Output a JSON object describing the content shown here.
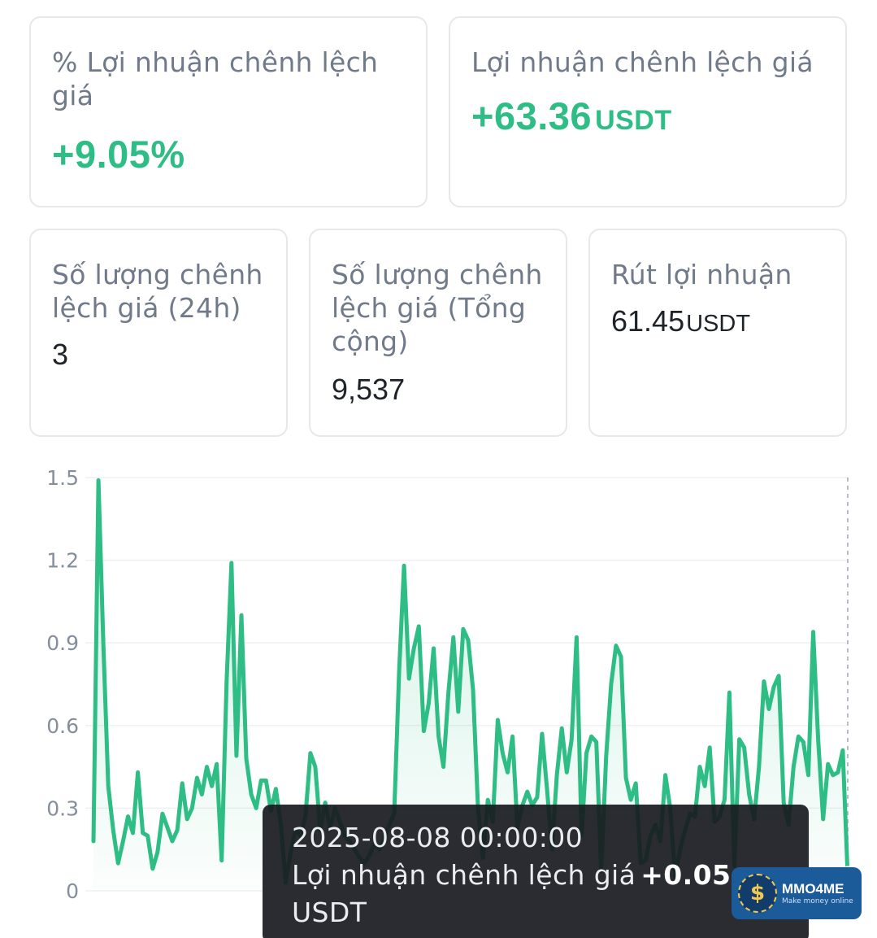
{
  "cards": {
    "arb_pct": {
      "label": "% Lợi nhuận chênh lệch giá",
      "value": "+9.05%"
    },
    "arb_profit": {
      "label": "Lợi nhuận chênh lệch giá",
      "value": "+63.36",
      "unit": "USDT"
    },
    "arb_count_24h": {
      "label": "Số lượng chênh lệch giá (24h)",
      "value": "3"
    },
    "arb_count_total": {
      "label": "Số lượng chênh lệch giá (Tổng cộng)",
      "value": "9,537"
    },
    "withdraw": {
      "label": "Rút lợi nhuận",
      "value": "61.45",
      "unit": "USDT"
    }
  },
  "tooltip": {
    "date": "2025-08-08 00:00:00",
    "label": "Lợi nhuận chênh lệch giá",
    "value": "+0.05",
    "unit": "USDT"
  },
  "watermark": {
    "brand": "MMO4ME",
    "tagline": "Make money online",
    "symbol": "$"
  },
  "colors": {
    "accent": "#2ebd85",
    "label": "#707a8a",
    "value": "#1e2329"
  },
  "chart_data": {
    "type": "area",
    "ylim": [
      0,
      1.5
    ],
    "yticks": [
      "0",
      "0.3",
      "0.6",
      "0.9",
      "1.2",
      "1.5"
    ],
    "grid": true,
    "values": [
      0.18,
      1.49,
      0.9,
      0.38,
      0.22,
      0.1,
      0.18,
      0.27,
      0.21,
      0.43,
      0.21,
      0.2,
      0.08,
      0.14,
      0.28,
      0.23,
      0.18,
      0.22,
      0.39,
      0.26,
      0.3,
      0.41,
      0.35,
      0.45,
      0.38,
      0.46,
      0.11,
      0.76,
      1.19,
      0.49,
      1.0,
      0.48,
      0.35,
      0.3,
      0.4,
      0.4,
      0.29,
      0.37,
      0.24,
      0.03,
      0.14,
      0.22,
      0.2,
      0.27,
      0.5,
      0.45,
      0.22,
      0.32,
      0.23,
      0.3,
      0.25,
      0.2,
      0.18,
      0.15,
      0.12,
      0.1,
      0.13,
      0.17,
      0.15,
      0.19,
      0.24,
      0.28,
      0.8,
      1.18,
      0.77,
      0.88,
      0.96,
      0.58,
      0.68,
      0.88,
      0.56,
      0.45,
      0.72,
      0.92,
      0.65,
      0.95,
      0.91,
      0.73,
      0.3,
      0.12,
      0.33,
      0.25,
      0.62,
      0.5,
      0.43,
      0.56,
      0.23,
      0.31,
      0.36,
      0.31,
      0.34,
      0.57,
      0.37,
      0.15,
      0.42,
      0.59,
      0.43,
      0.55,
      0.92,
      0.2,
      0.5,
      0.56,
      0.54,
      0.07,
      0.49,
      0.75,
      0.89,
      0.85,
      0.41,
      0.33,
      0.39,
      0.1,
      0.11,
      0.2,
      0.24,
      0.18,
      0.42,
      0.3,
      0.05,
      0.15,
      0.22,
      0.28,
      0.27,
      0.45,
      0.38,
      0.52,
      0.25,
      0.27,
      0.33,
      0.72,
      0.09,
      0.55,
      0.52,
      0.35,
      0.26,
      0.45,
      0.76,
      0.66,
      0.74,
      0.78,
      0.32,
      0.24,
      0.45,
      0.56,
      0.54,
      0.42,
      0.94,
      0.55,
      0.26,
      0.46,
      0.42,
      0.43,
      0.51,
      0.05
    ]
  }
}
